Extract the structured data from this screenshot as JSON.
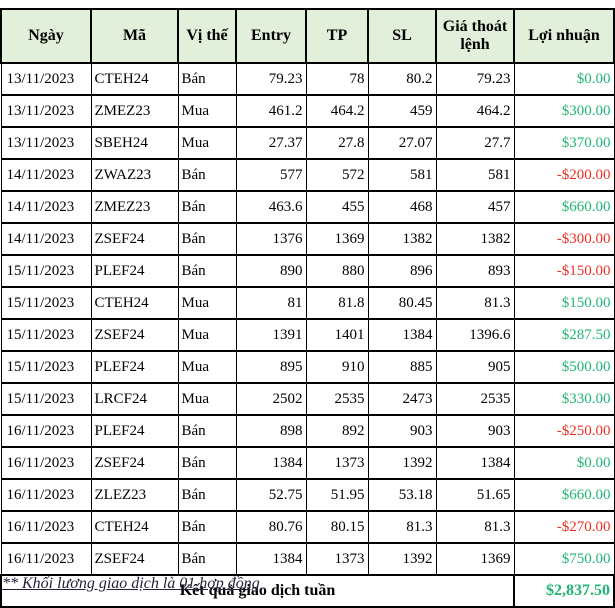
{
  "table": {
    "columns": [
      {
        "key": "date",
        "label": "Ngày",
        "align": "left"
      },
      {
        "key": "code",
        "label": "Mã",
        "align": "left"
      },
      {
        "key": "side",
        "label": "Vị thế",
        "align": "left"
      },
      {
        "key": "entry",
        "label": "Entry",
        "align": "right"
      },
      {
        "key": "tp",
        "label": "TP",
        "align": "right"
      },
      {
        "key": "sl",
        "label": "SL",
        "align": "right"
      },
      {
        "key": "exit",
        "label": "Giá thoát lệnh",
        "align": "right"
      },
      {
        "key": "profit",
        "label": "Lợi nhuận",
        "align": "right"
      }
    ],
    "rows": [
      {
        "date": "13/11/2023",
        "code": "CTEH24",
        "side": "Bán",
        "entry": "79.23",
        "tp": "78",
        "sl": "80.2",
        "exit": "79.23",
        "profit": "$0.00"
      },
      {
        "date": "13/11/2023",
        "code": "ZMEZ23",
        "side": "Mua",
        "entry": "461.2",
        "tp": "464.2",
        "sl": "459",
        "exit": "464.2",
        "profit": "$300.00"
      },
      {
        "date": "13/11/2023",
        "code": "SBEH24",
        "side": "Mua",
        "entry": "27.37",
        "tp": "27.8",
        "sl": "27.07",
        "exit": "27.7",
        "profit": "$370.00"
      },
      {
        "date": "14/11/2023",
        "code": "ZWAZ23",
        "side": "Bán",
        "entry": "577",
        "tp": "572",
        "sl": "581",
        "exit": "581",
        "profit": "-$200.00"
      },
      {
        "date": "14/11/2023",
        "code": "ZMEZ23",
        "side": "Bán",
        "entry": "463.6",
        "tp": "455",
        "sl": "468",
        "exit": "457",
        "profit": "$660.00"
      },
      {
        "date": "14/11/2023",
        "code": "ZSEF24",
        "side": "Bán",
        "entry": "1376",
        "tp": "1369",
        "sl": "1382",
        "exit": "1382",
        "profit": "-$300.00"
      },
      {
        "date": "15/11/2023",
        "code": "PLEF24",
        "side": "Bán",
        "entry": "890",
        "tp": "880",
        "sl": "896",
        "exit": "893",
        "profit": "-$150.00"
      },
      {
        "date": "15/11/2023",
        "code": "CTEH24",
        "side": "Mua",
        "entry": "81",
        "tp": "81.8",
        "sl": "80.45",
        "exit": "81.3",
        "profit": "$150.00"
      },
      {
        "date": "15/11/2023",
        "code": "ZSEF24",
        "side": "Mua",
        "entry": "1391",
        "tp": "1401",
        "sl": "1384",
        "exit": "1396.6",
        "profit": "$287.50"
      },
      {
        "date": "15/11/2023",
        "code": "PLEF24",
        "side": "Mua",
        "entry": "895",
        "tp": "910",
        "sl": "885",
        "exit": "905",
        "profit": "$500.00"
      },
      {
        "date": "15/11/2023",
        "code": "LRCF24",
        "side": "Mua",
        "entry": "2502",
        "tp": "2535",
        "sl": "2473",
        "exit": "2535",
        "profit": "$330.00"
      },
      {
        "date": "16/11/2023",
        "code": "PLEF24",
        "side": "Bán",
        "entry": "898",
        "tp": "892",
        "sl": "903",
        "exit": "903",
        "profit": "-$250.00"
      },
      {
        "date": "16/11/2023",
        "code": "ZSEF24",
        "side": "Bán",
        "entry": "1384",
        "tp": "1373",
        "sl": "1392",
        "exit": "1384",
        "profit": "$0.00"
      },
      {
        "date": "16/11/2023",
        "code": "ZLEZ23",
        "side": "Bán",
        "entry": "52.75",
        "tp": "51.95",
        "sl": "53.18",
        "exit": "51.65",
        "profit": "$660.00"
      },
      {
        "date": "16/11/2023",
        "code": "CTEH24",
        "side": "Bán",
        "entry": "80.76",
        "tp": "80.15",
        "sl": "81.3",
        "exit": "81.3",
        "profit": "-$270.00"
      },
      {
        "date": "16/11/2023",
        "code": "ZSEF24",
        "side": "Bán",
        "entry": "1384",
        "tp": "1373",
        "sl": "1392",
        "exit": "1369",
        "profit": "$750.00"
      }
    ],
    "footer": {
      "label": "Kết quả giao dịch tuần",
      "total": "$2,837.50"
    }
  },
  "footnote": "** Khối lương giao dịch là 01 hợp đồng",
  "colors": {
    "positive": "#22B573",
    "negative": "#EE3124",
    "header_bg": "#E2EFDA",
    "border": "#000000"
  }
}
